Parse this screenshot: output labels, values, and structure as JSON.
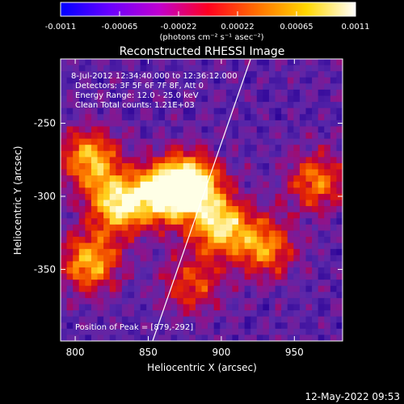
{
  "colorbar": {
    "ticks": [
      "-0.0011",
      "-0.00065",
      "-0.00022",
      "0.00022",
      "0.00065",
      "0.0011"
    ],
    "unit_label": "(photons cm⁻² s⁻¹ asec⁻²)",
    "colors": [
      "#0000ff",
      "#6a00ff",
      "#c000d0",
      "#ff0020",
      "#ff7000",
      "#ffd800",
      "#ffffff"
    ]
  },
  "chart_data": {
    "type": "heatmap",
    "title": "Reconstructed RHESSI Image",
    "xlabel": "Heliocentric X (arcsec)",
    "ylabel": "Heliocentric Y (arcsec)",
    "xlim": [
      790,
      983
    ],
    "ylim": [
      -399,
      -206
    ],
    "xticks": [
      "800",
      "850",
      "900",
      "950"
    ],
    "yticks": [
      "-250",
      "-300",
      "-350"
    ],
    "xtick_values": [
      800,
      850,
      900,
      950
    ],
    "ytick_values": [
      -250,
      -300,
      -350
    ],
    "value_range": [
      -0.0011,
      0.0011
    ],
    "bright_regions": [
      {
        "x": 879,
        "y": -292,
        "rel": 1.0
      },
      {
        "x": 860,
        "y": -298,
        "rel": 0.8
      },
      {
        "x": 830,
        "y": -305,
        "rel": 0.85
      },
      {
        "x": 810,
        "y": -275,
        "rel": 0.7
      },
      {
        "x": 900,
        "y": -320,
        "rel": 0.8
      },
      {
        "x": 930,
        "y": -335,
        "rel": 0.6
      },
      {
        "x": 965,
        "y": -290,
        "rel": 0.55
      },
      {
        "x": 810,
        "y": -345,
        "rel": 0.7
      },
      {
        "x": 880,
        "y": -360,
        "rel": 0.45
      }
    ],
    "limb_line": [
      [
        853,
        -399
      ],
      [
        920,
        -206
      ]
    ],
    "annotations": {
      "time": "8-Jul-2012 12:34:40.000 to 12:36:12.000",
      "detectors": "Detectors: 3F 5F 6F 7F 8F, Att 0",
      "energy": "Energy Range: 12.0 - 25.0 keV",
      "clean": "Clean    Total counts: 1.21E+03",
      "peak": "Position of Peak = [879,-292]"
    }
  },
  "footer": {
    "timestamp": "12-May-2022 09:53"
  }
}
